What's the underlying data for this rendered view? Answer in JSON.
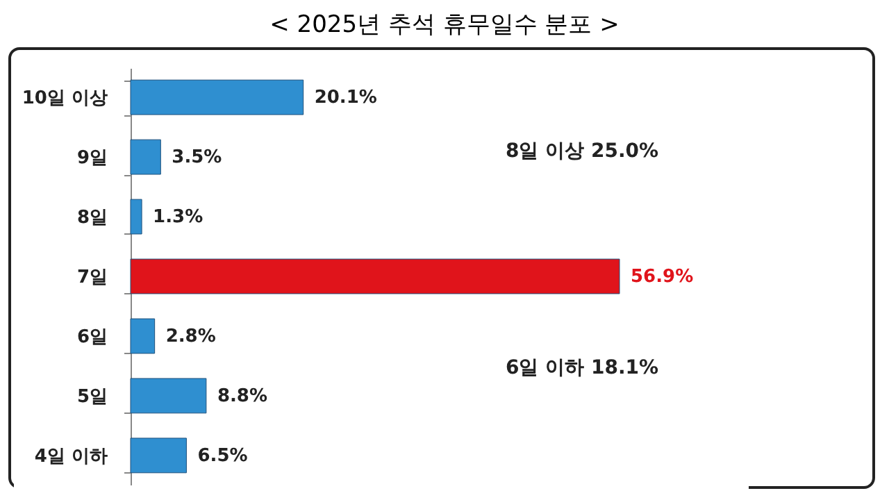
{
  "chart_data": {
    "type": "bar",
    "orientation": "horizontal",
    "title": "< 2025년 추석 휴무일수 분포 >",
    "categories": [
      "10일 이상",
      "9일",
      "8일",
      "7일",
      "6일",
      "5일",
      "4일 이하"
    ],
    "values": [
      20.1,
      3.5,
      1.3,
      56.9,
      2.8,
      8.8,
      6.5
    ],
    "colors": [
      "#2f8fd0",
      "#2f8fd0",
      "#2f8fd0",
      "#e0141b",
      "#2f8fd0",
      "#2f8fd0",
      "#2f8fd0"
    ],
    "value_labels": [
      "20.1%",
      "3.5%",
      "1.3%",
      "56.9%",
      "2.8%",
      "8.8%",
      "6.5%"
    ],
    "annotations": [
      "8일 이상 25.0%",
      "6일 이하 18.1%"
    ]
  }
}
